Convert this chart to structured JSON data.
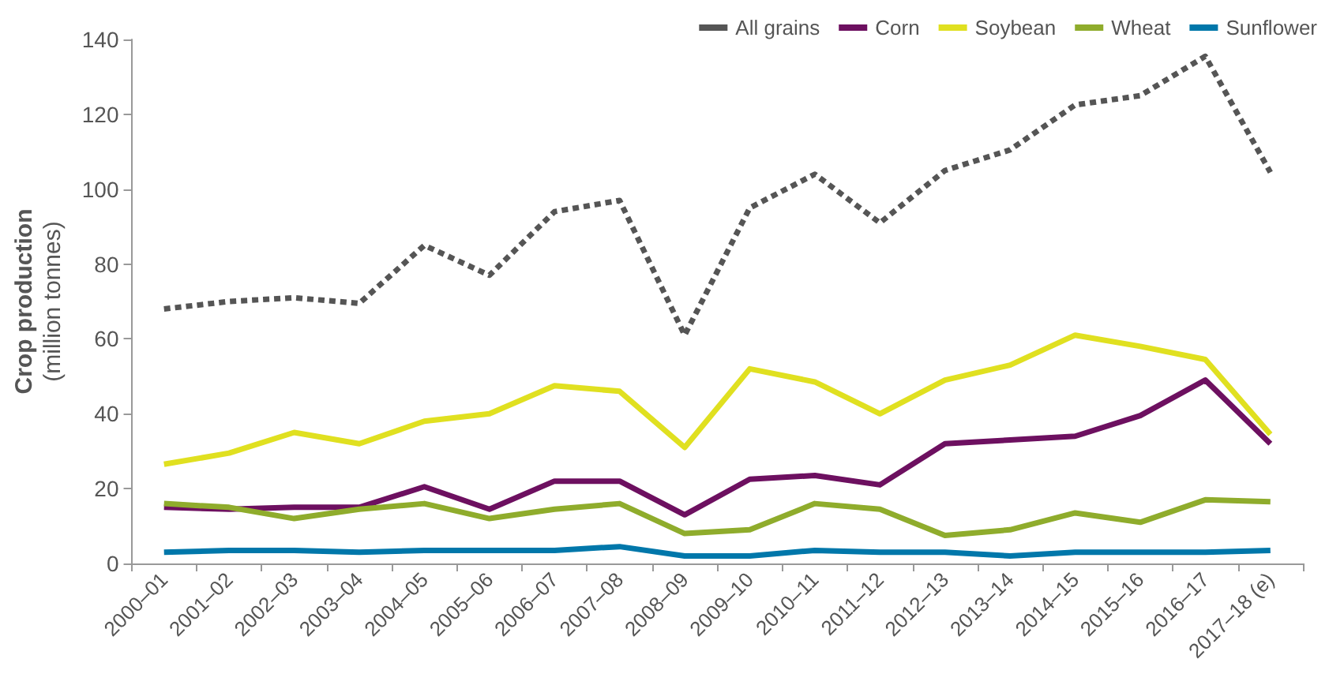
{
  "chart_data": {
    "type": "line",
    "ylabel": "Crop production\n(million tonnes)",
    "categories": [
      "2000–01",
      "2001–02",
      "2002–03",
      "2003–04",
      "2004–05",
      "2005–06",
      "2006–07",
      "2007–08",
      "2008–09",
      "2009–10",
      "2010–11",
      "2011–12",
      "2012–13",
      "2013–14",
      "2014–15",
      "2015–16",
      "2016–17",
      "2017–18 (e)"
    ],
    "series": [
      {
        "name": "All grains",
        "color": "#555555",
        "line_style": "dashed",
        "values": [
          68,
          70,
          71,
          69.5,
          85,
          77,
          94,
          97,
          61,
          95,
          104,
          91,
          105,
          110.5,
          122.5,
          125,
          135.5,
          104.5
        ]
      },
      {
        "name": "Corn",
        "color": "#6d1060",
        "values": [
          15,
          14.5,
          15,
          15,
          20.5,
          14.5,
          22,
          22,
          13,
          22.5,
          23.5,
          21,
          32,
          33,
          34,
          39.5,
          49,
          32
        ]
      },
      {
        "name": "Soybean",
        "color": "#e0e020",
        "values": [
          26.5,
          29.5,
          35,
          32,
          38,
          40,
          47.5,
          46,
          31,
          52,
          48.5,
          40,
          49,
          53,
          61,
          58,
          54.5,
          34.5
        ]
      },
      {
        "name": "Wheat",
        "color": "#8fac2c",
        "values": [
          16,
          15,
          12,
          14.5,
          16,
          12,
          14.5,
          16,
          8,
          9,
          16,
          14.5,
          7.5,
          9,
          13.5,
          11,
          17,
          16.5
        ]
      },
      {
        "name": "Sunflower",
        "color": "#0077aa",
        "values": [
          3,
          3.5,
          3.5,
          3,
          3.5,
          3.5,
          3.5,
          4.5,
          2,
          2,
          3.5,
          3,
          3,
          2,
          3,
          3,
          3,
          3.5
        ]
      }
    ],
    "ylim": [
      0,
      140
    ],
    "yticks": [
      0,
      20,
      40,
      60,
      80,
      100,
      120,
      140
    ],
    "grid": false,
    "legend": "top right",
    "marker": "none",
    "line_style": "solid"
  }
}
